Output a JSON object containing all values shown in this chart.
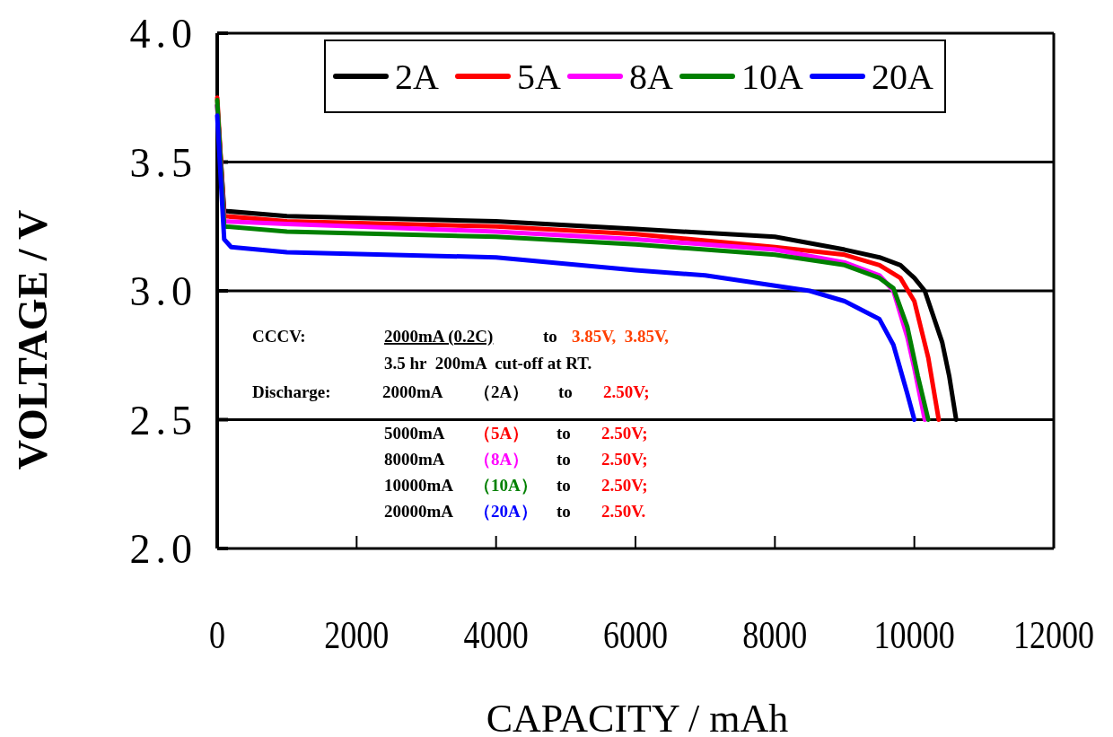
{
  "chart_data": {
    "type": "line",
    "xlabel": "CAPACITY / mAh",
    "ylabel": "VOLTAGE / V",
    "xlim": [
      0,
      12000
    ],
    "xticks": [
      0,
      2000,
      4000,
      6000,
      8000,
      10000,
      12000
    ],
    "ylim": [
      2.0,
      4.0
    ],
    "yticks": [
      {
        "value": 2.0,
        "label": "2.0"
      },
      {
        "value": 2.5,
        "label": "2.5"
      },
      {
        "value": 3.0,
        "label": "3.0"
      },
      {
        "value": 3.5,
        "label": "3.5"
      },
      {
        "value": 4.0,
        "label": "4.0"
      }
    ],
    "grid": "y",
    "legend": "top right",
    "line_style": "solid",
    "marker": "none",
    "series": [
      {
        "name": "2A",
        "color": "#000000",
        "x": [
          0,
          100,
          1000,
          4000,
          6000,
          8000,
          9000,
          9500,
          9800,
          10000,
          10150,
          10400,
          10500,
          10600
        ],
        "values": [
          3.72,
          3.31,
          3.29,
          3.27,
          3.24,
          3.21,
          3.16,
          3.13,
          3.1,
          3.05,
          3.0,
          2.8,
          2.67,
          2.5
        ]
      },
      {
        "name": "5A",
        "color": "#ff0000",
        "x": [
          0,
          100,
          1000,
          4000,
          6000,
          8000,
          9000,
          9500,
          9800,
          10000,
          10200,
          10350
        ],
        "values": [
          3.75,
          3.29,
          3.27,
          3.25,
          3.22,
          3.17,
          3.14,
          3.1,
          3.05,
          2.96,
          2.74,
          2.5
        ]
      },
      {
        "name": "8A",
        "color": "#ff00ff",
        "x": [
          0,
          100,
          1000,
          4000,
          6000,
          8000,
          9000,
          9500,
          9700,
          9900,
          10000,
          10150
        ],
        "values": [
          3.72,
          3.27,
          3.26,
          3.23,
          3.2,
          3.16,
          3.11,
          3.06,
          3.0,
          2.82,
          2.7,
          2.5
        ]
      },
      {
        "name": "10A",
        "color": "#008000",
        "x": [
          0,
          100,
          1000,
          4000,
          6000,
          8000,
          9000,
          9500,
          9700,
          9900,
          10050,
          10200
        ],
        "values": [
          3.74,
          3.25,
          3.23,
          3.21,
          3.18,
          3.14,
          3.1,
          3.05,
          3.01,
          2.86,
          2.67,
          2.5
        ]
      },
      {
        "name": "20A",
        "color": "#0000ff",
        "x": [
          0,
          100,
          200,
          1000,
          4000,
          6000,
          7000,
          8000,
          8500,
          9000,
          9500,
          9700,
          9900,
          10000
        ],
        "values": [
          3.68,
          3.2,
          3.17,
          3.15,
          3.13,
          3.08,
          3.06,
          3.02,
          3.0,
          2.96,
          2.89,
          2.79,
          2.6,
          2.5
        ]
      }
    ],
    "annotations": [
      "CCCV:",
      "2000mA (0.2C)",
      "to",
      "3.85V,  3.85V,",
      "3.5 hr  200mA  cut-off at RT.",
      "Discharge:",
      "2000mA",
      "（2A）",
      "to",
      "2.50V;",
      "5000mA",
      "（5A）",
      "to",
      "2.50V;",
      "8000mA",
      "（8A）",
      "to",
      "2.50V;",
      "10000mA",
      "（10A）",
      "to",
      "2.50V;",
      "20000mA",
      "（20A）",
      "to",
      "2.50V."
    ]
  }
}
